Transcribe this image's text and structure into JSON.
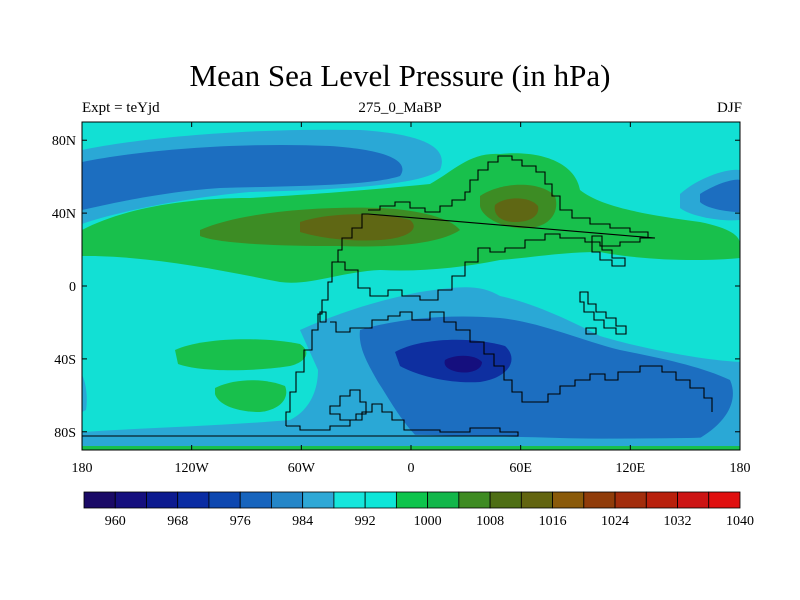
{
  "title": "Mean Sea Level Pressure (in hPa)",
  "subtitle_left": "Expt = teYjd",
  "subtitle_center": "275_0_MaBP",
  "subtitle_right": "DJF",
  "map": {
    "projection": "cylindrical-equidistant",
    "lon_range": [
      -180,
      180
    ],
    "lat_range": [
      -90,
      90
    ],
    "lat_ticks": [
      {
        "value": 80,
        "label": "80N"
      },
      {
        "value": 40,
        "label": "40N"
      },
      {
        "value": 0,
        "label": "0"
      },
      {
        "value": -40,
        "label": "40S"
      },
      {
        "value": -80,
        "label": "80S"
      }
    ],
    "lon_ticks": [
      {
        "value": -180,
        "label": "180"
      },
      {
        "value": -120,
        "label": "120W"
      },
      {
        "value": -60,
        "label": "60W"
      },
      {
        "value": 0,
        "label": "0"
      },
      {
        "value": 60,
        "label": "60E"
      },
      {
        "value": 120,
        "label": "120E"
      },
      {
        "value": 180,
        "label": "180"
      }
    ]
  },
  "colorbar": {
    "colors": [
      "#1a0a66",
      "#150f7e",
      "#0c1a8f",
      "#0a2ca3",
      "#0d47b0",
      "#1764bd",
      "#2486c8",
      "#2ea8d6",
      "#16e6dc",
      "#0ee6d8",
      "#0ec44c",
      "#12b64a",
      "#3e8b22",
      "#4e6e14",
      "#626410",
      "#8a5a0a",
      "#903c0a",
      "#a22d0c",
      "#b8200c",
      "#cc1414",
      "#e00f0f"
    ],
    "levels": [
      960,
      964,
      968,
      972,
      976,
      980,
      984,
      988,
      992,
      996,
      1000,
      1004,
      1008,
      1012,
      1016,
      1020,
      1024,
      1028,
      1032,
      1036,
      1040
    ],
    "labels": [
      "960",
      "968",
      "976",
      "984",
      "992",
      "1000",
      "1008",
      "1016",
      "1024",
      "1032",
      "1040"
    ]
  },
  "fields": {
    "background": "#12e0d4",
    "low_light": "#2aa8d6",
    "low_mid": "#1c6ec0",
    "low_deep": "#0e2fa0",
    "high_light": "#18c04c",
    "high_mid": "#3d8c24",
    "high_deep": "#5f6714",
    "coast": "#000000"
  }
}
